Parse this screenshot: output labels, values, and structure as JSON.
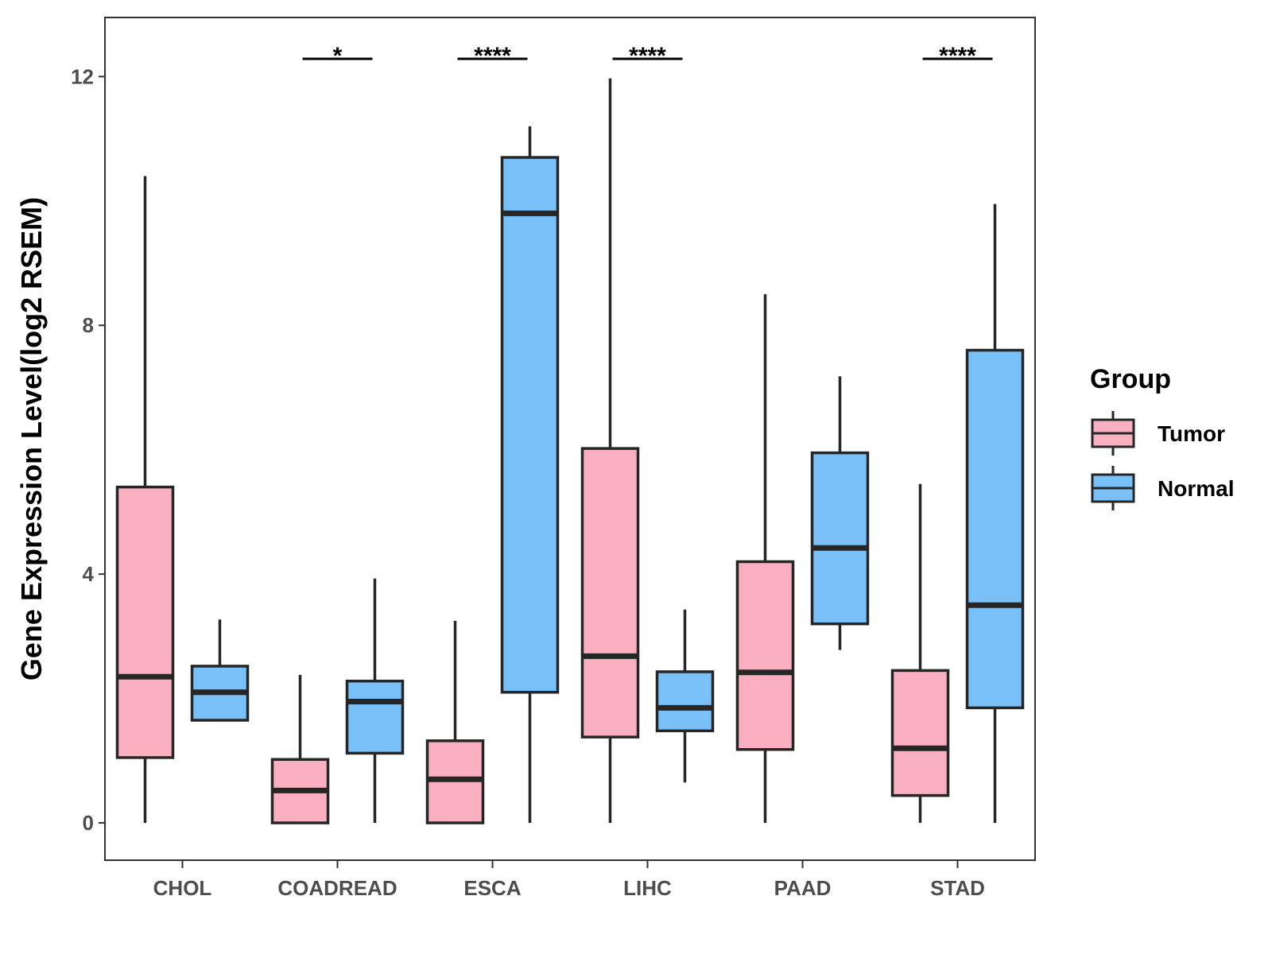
{
  "chart_data": {
    "type": "boxplot",
    "title": "",
    "xlabel": "",
    "ylabel": "Gene Expression Level(log2 RSEM)",
    "ylim": [
      -0.6,
      12.95
    ],
    "yticks": [
      0,
      4,
      8,
      12
    ],
    "ytick_labels": [
      "0",
      "4",
      "8",
      "12"
    ],
    "grid": false,
    "legend": {
      "title": "Group",
      "position": "right"
    },
    "categories": [
      "CHOL",
      "COADREAD",
      "ESCA",
      "LIHC",
      "PAAD",
      "STAD"
    ],
    "series": [
      {
        "name": "Tumor",
        "color": "#fbb0c2",
        "boxes": [
          {
            "min": 0.0,
            "q1": 1.05,
            "median": 2.35,
            "q3": 5.4,
            "max": 10.4
          },
          {
            "min": 0.0,
            "q1": 0.0,
            "median": 0.52,
            "q3": 1.02,
            "max": 2.38
          },
          {
            "min": 0.0,
            "q1": 0.0,
            "median": 0.7,
            "q3": 1.32,
            "max": 3.25
          },
          {
            "min": 0.0,
            "q1": 1.38,
            "median": 2.68,
            "q3": 6.02,
            "max": 11.97
          },
          {
            "min": 0.0,
            "q1": 1.18,
            "median": 2.42,
            "q3": 4.2,
            "max": 8.5
          },
          {
            "min": 0.0,
            "q1": 0.44,
            "median": 1.2,
            "q3": 2.45,
            "max": 5.45
          }
        ]
      },
      {
        "name": "Normal",
        "color": "#78c0f7",
        "boxes": [
          {
            "min": 1.65,
            "q1": 1.65,
            "median": 2.1,
            "q3": 2.52,
            "max": 3.27
          },
          {
            "min": 0.0,
            "q1": 1.12,
            "median": 1.95,
            "q3": 2.28,
            "max": 3.93
          },
          {
            "min": 0.0,
            "q1": 2.1,
            "median": 9.8,
            "q3": 10.7,
            "max": 11.2
          },
          {
            "min": 0.65,
            "q1": 1.48,
            "median": 1.85,
            "q3": 2.43,
            "max": 3.43
          },
          {
            "min": 2.78,
            "q1": 3.2,
            "median": 4.42,
            "q3": 5.95,
            "max": 7.18
          },
          {
            "min": 0.0,
            "q1": 1.85,
            "median": 3.5,
            "q3": 7.6,
            "max": 9.95
          }
        ]
      }
    ],
    "significance": [
      "",
      "*",
      "****",
      "****",
      "",
      "****"
    ]
  }
}
